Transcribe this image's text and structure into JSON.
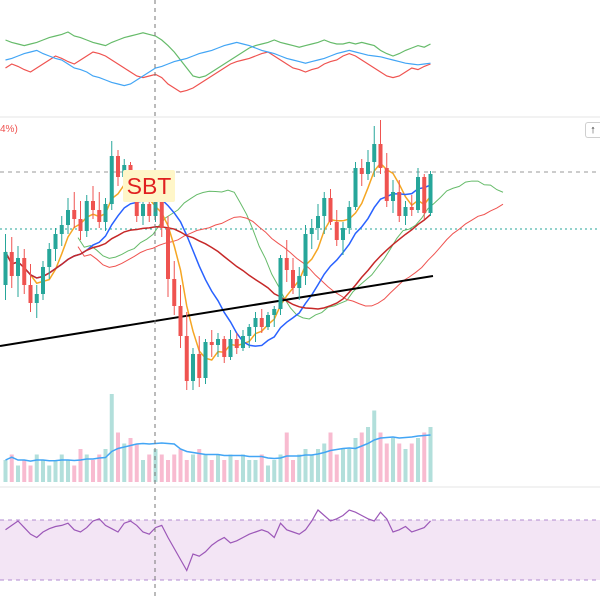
{
  "annotation": {
    "label": "SBT"
  },
  "legend_fragment": "4%)",
  "scroll_button": {
    "icon": "arrow-up-icon",
    "glyph": "↑"
  },
  "colors": {
    "bull": "#26a69a",
    "bear": "#ef5350",
    "cloud_bull": "#e6f4ea",
    "cloud_bear": "#fde2e2",
    "ma_fast": "#f5a623",
    "ma_mid": "#2962ff",
    "ma_slow": "#c62828",
    "ma_long": "#000000",
    "rsi": "#9c58b8",
    "rsi_band": "#f3e5f5",
    "vol_ma": "#42a5f5"
  },
  "chart_data": {
    "type": "candlestick",
    "candles": [
      [
        -0.5,
        1.2,
        -1.0,
        0.6
      ],
      [
        0.6,
        1.1,
        -0.6,
        -0.2
      ],
      [
        -0.2,
        0.8,
        -0.9,
        0.4
      ],
      [
        0.4,
        0.7,
        -0.8,
        -0.5
      ],
      [
        -0.5,
        0.2,
        -1.4,
        -1.1
      ],
      [
        -1.1,
        -0.5,
        -1.6,
        -0.8
      ],
      [
        -0.8,
        0.3,
        -1.0,
        0.1
      ],
      [
        0.1,
        0.9,
        -0.3,
        0.7
      ],
      [
        0.7,
        1.4,
        0.3,
        1.2
      ],
      [
        1.2,
        1.8,
        0.8,
        1.5
      ],
      [
        1.5,
        2.4,
        1.2,
        2.0
      ],
      [
        2.0,
        2.6,
        1.4,
        1.7
      ],
      [
        1.7,
        2.3,
        1.0,
        1.3
      ],
      [
        1.3,
        2.5,
        1.1,
        2.3
      ],
      [
        2.3,
        2.8,
        1.7,
        2.0
      ],
      [
        2.0,
        2.6,
        1.4,
        1.6
      ],
      [
        1.6,
        2.4,
        1.3,
        2.2
      ],
      [
        2.2,
        4.3,
        2.0,
        3.8
      ],
      [
        3.8,
        4.0,
        2.8,
        3.1
      ],
      [
        3.1,
        3.7,
        2.5,
        3.5
      ],
      [
        3.5,
        3.6,
        2.3,
        2.5
      ],
      [
        2.5,
        2.9,
        1.6,
        1.8
      ],
      [
        1.8,
        2.4,
        1.5,
        2.2
      ],
      [
        2.2,
        2.6,
        1.6,
        1.8
      ],
      [
        1.8,
        2.5,
        1.6,
        2.3
      ],
      [
        2.3,
        2.6,
        1.1,
        1.4
      ],
      [
        1.4,
        1.8,
        -0.9,
        -0.3
      ],
      [
        -0.3,
        0.3,
        -1.5,
        -1.2
      ],
      [
        -1.2,
        -0.5,
        -2.6,
        -2.2
      ],
      [
        -2.2,
        -1.4,
        -4.0,
        -3.7
      ],
      [
        -3.7,
        -2.6,
        -4.0,
        -2.8
      ],
      [
        -2.8,
        -2.2,
        -3.9,
        -3.6
      ],
      [
        -3.6,
        -2.3,
        -3.8,
        -2.4
      ],
      [
        -2.4,
        -2.0,
        -2.9,
        -2.5
      ],
      [
        -2.5,
        -2.1,
        -2.9,
        -2.3
      ],
      [
        -2.3,
        -2.2,
        -3.1,
        -2.9
      ],
      [
        -2.9,
        -2.0,
        -3.0,
        -2.3
      ],
      [
        -2.3,
        -2.1,
        -2.8,
        -2.6
      ],
      [
        -2.6,
        -2.0,
        -2.7,
        -2.2
      ],
      [
        -2.2,
        -1.8,
        -2.6,
        -1.9
      ],
      [
        -1.9,
        -1.4,
        -2.4,
        -1.6
      ],
      [
        -1.6,
        -1.3,
        -2.1,
        -1.9
      ],
      [
        -1.9,
        -1.4,
        -2.0,
        -1.5
      ],
      [
        -1.5,
        -1.2,
        -1.9,
        -1.3
      ],
      [
        -1.3,
        0.5,
        -1.5,
        0.4
      ],
      [
        0.4,
        1.0,
        -0.4,
        0.0
      ],
      [
        0.0,
        0.4,
        -0.8,
        -0.6
      ],
      [
        -0.6,
        0.1,
        -1.0,
        -0.2
      ],
      [
        -0.2,
        1.5,
        -0.5,
        1.2
      ],
      [
        1.2,
        1.7,
        0.7,
        1.4
      ],
      [
        1.4,
        2.2,
        1.0,
        1.8
      ],
      [
        1.8,
        2.6,
        1.2,
        2.4
      ],
      [
        2.4,
        2.7,
        1.5,
        1.6
      ],
      [
        1.6,
        2.0,
        0.8,
        1.0
      ],
      [
        1.0,
        1.6,
        0.5,
        1.4
      ],
      [
        1.4,
        2.3,
        1.2,
        2.1
      ],
      [
        2.1,
        3.6,
        2.0,
        3.4
      ],
      [
        3.4,
        3.7,
        2.8,
        3.2
      ],
      [
        3.2,
        4.0,
        3.0,
        3.6
      ],
      [
        3.6,
        4.8,
        3.1,
        4.2
      ],
      [
        4.2,
        5.0,
        3.2,
        3.4
      ],
      [
        3.4,
        3.9,
        2.1,
        2.3
      ],
      [
        2.3,
        3.0,
        1.9,
        2.6
      ],
      [
        2.6,
        3.0,
        1.6,
        1.8
      ],
      [
        1.8,
        2.3,
        1.5,
        2.1
      ],
      [
        2.1,
        2.5,
        1.8,
        2.0
      ],
      [
        2.0,
        3.4,
        1.9,
        3.1
      ],
      [
        3.1,
        3.2,
        1.7,
        1.9
      ],
      [
        1.9,
        3.3,
        1.8,
        3.2
      ]
    ],
    "volumes": [
      4,
      5,
      3,
      4,
      3,
      5,
      4,
      3,
      4,
      5,
      4,
      3,
      6,
      5,
      4,
      5,
      6,
      16,
      9,
      7,
      8,
      7,
      4,
      5,
      6,
      5,
      4,
      5,
      6,
      4,
      5,
      6,
      5,
      4,
      5,
      4,
      5,
      4,
      5,
      4,
      4,
      5,
      3,
      4,
      5,
      9,
      4,
      5,
      6,
      5,
      6,
      7,
      9,
      5,
      6,
      6,
      8,
      9,
      10,
      13,
      9,
      7,
      8,
      7,
      6,
      7,
      8,
      9,
      10
    ],
    "rsi": [
      62,
      66,
      70,
      64,
      58,
      55,
      60,
      63,
      65,
      66,
      68,
      62,
      60,
      64,
      70,
      72,
      66,
      63,
      60,
      68,
      70,
      66,
      60,
      58,
      64,
      66,
      55,
      45,
      35,
      25,
      40,
      38,
      42,
      48,
      52,
      55,
      50,
      52,
      55,
      58,
      60,
      62,
      60,
      55,
      68,
      62,
      60,
      58,
      62,
      70,
      80,
      75,
      70,
      72,
      75,
      80,
      78,
      75,
      72,
      70,
      78,
      72,
      60,
      62,
      65,
      60,
      62,
      64,
      70
    ],
    "ind_a": [
      75,
      72,
      70,
      68,
      70,
      72,
      75,
      78,
      80,
      82,
      85,
      80,
      78,
      75,
      72,
      70,
      68,
      72,
      75,
      78,
      80,
      82,
      84,
      82,
      80,
      75,
      68,
      60,
      50,
      40,
      30,
      28,
      30,
      35,
      40,
      45,
      50,
      55,
      60,
      65,
      68,
      70,
      72,
      75,
      72,
      70,
      68,
      66,
      68,
      70,
      72,
      75,
      72,
      70,
      70,
      72,
      70,
      72,
      70,
      68,
      62,
      58,
      55,
      58,
      62,
      65,
      68,
      66,
      70
    ],
    "ind_b": [
      40,
      45,
      42,
      38,
      35,
      40,
      45,
      50,
      55,
      52,
      48,
      45,
      50,
      55,
      60,
      58,
      55,
      50,
      45,
      40,
      35,
      30,
      28,
      30,
      32,
      28,
      20,
      15,
      10,
      12,
      15,
      20,
      25,
      30,
      35,
      40,
      45,
      48,
      50,
      52,
      55,
      58,
      60,
      55,
      50,
      45,
      40,
      38,
      35,
      38,
      40,
      45,
      48,
      50,
      55,
      58,
      55,
      50,
      45,
      40,
      35,
      30,
      28,
      30,
      35,
      40,
      38,
      42,
      45
    ],
    "ind_c": [
      50,
      52,
      55,
      58,
      60,
      62,
      58,
      55,
      52,
      50,
      45,
      40,
      38,
      35,
      30,
      28,
      25,
      22,
      20,
      18,
      20,
      25,
      30,
      35,
      40,
      42,
      45,
      48,
      50,
      52,
      55,
      58,
      60,
      62,
      65,
      68,
      70,
      72,
      70,
      68,
      65,
      62,
      60,
      58,
      55,
      52,
      50,
      48,
      46,
      48,
      50,
      52,
      55,
      58,
      60,
      62,
      60,
      58,
      56,
      55,
      54,
      52,
      50,
      48,
      46,
      45,
      44,
      45,
      46
    ]
  }
}
